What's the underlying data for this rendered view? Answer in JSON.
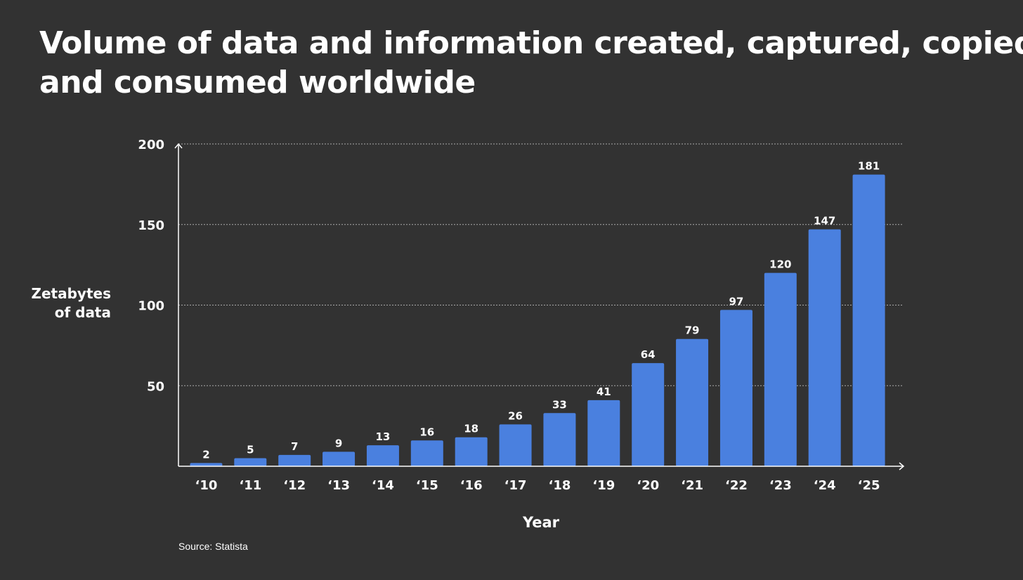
{
  "title": {
    "line1": "Volume of data and information created, captured, copied,",
    "line2": "and consumed worldwide"
  },
  "colors": {
    "background": "#323232",
    "bar": "#4a80df",
    "text": "#ffffff",
    "grid": "#aaaaaa"
  },
  "source": "Source: Statista",
  "chart_data": {
    "type": "bar",
    "title": "Volume of data and information created, captured, copied, and consumed worldwide",
    "xlabel": "Year",
    "ylabel": [
      "Zetabytes",
      "of data"
    ],
    "categories": [
      "‘10",
      "‘11",
      "‘12",
      "‘13",
      "‘14",
      "‘15",
      "‘16",
      "‘17",
      "‘18",
      "‘19",
      "‘20",
      "‘21",
      "‘22",
      "‘23",
      "‘24",
      "‘25"
    ],
    "values": [
      2,
      5,
      7,
      9,
      13,
      16,
      18,
      26,
      33,
      41,
      64,
      79,
      97,
      120,
      147,
      181
    ],
    "yticks": [
      50,
      100,
      150,
      200
    ],
    "ylim": [
      0,
      200
    ],
    "grid": "horizontal dotted",
    "legend": "none"
  }
}
